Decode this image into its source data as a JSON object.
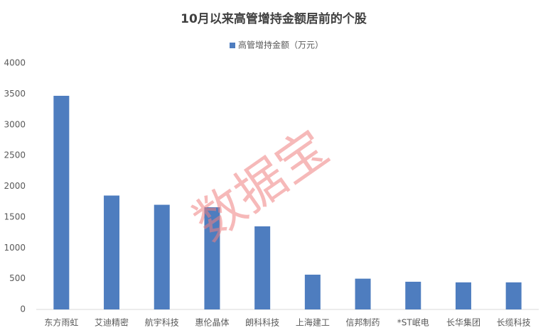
{
  "chart_data": {
    "type": "bar",
    "title": "10月以来高管增持金额居前的个股",
    "watermark": "数据宝",
    "categories": [
      "东方雨虹",
      "艾迪精密",
      "航宇科技",
      "惠伦晶体",
      "朗科科技",
      "上海建工",
      "信邦制药",
      "*ST岷电",
      "长华集团",
      "长缆科技"
    ],
    "series": [
      {
        "name": "高管增持金额（万元）",
        "color": "#4e7dbf",
        "values": [
          3470,
          1850,
          1700,
          1660,
          1350,
          565,
          500,
          450,
          440,
          440
        ]
      }
    ],
    "ylim": [
      0,
      4000
    ],
    "yticks": [
      0,
      500,
      1000,
      1500,
      2000,
      2500,
      3000,
      3500,
      4000
    ]
  }
}
